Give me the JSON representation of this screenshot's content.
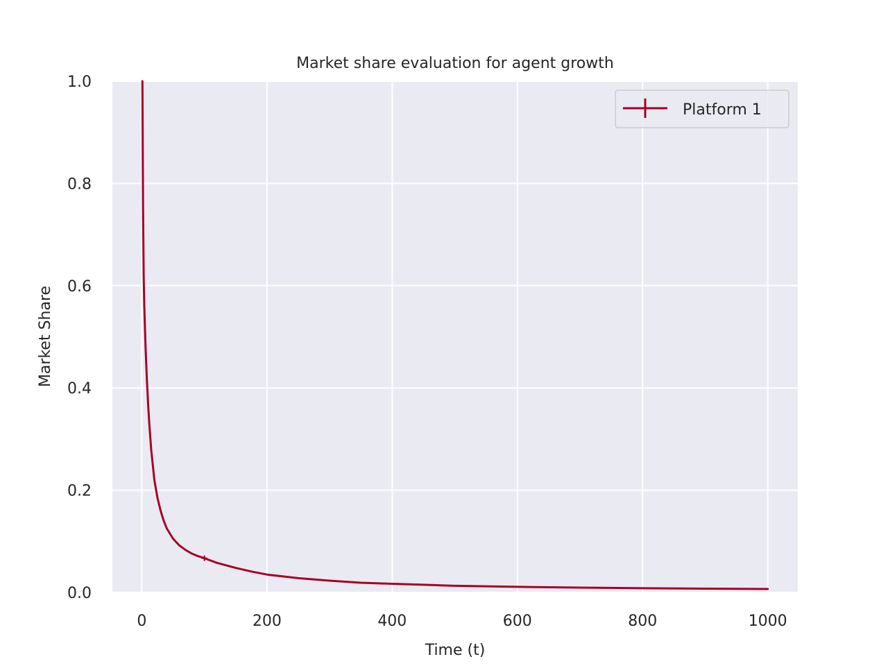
{
  "chart_data": {
    "type": "line",
    "title": "Market share evaluation for agent growth",
    "xlabel": "Time (t)",
    "ylabel": "Market Share",
    "xlim": [
      -47,
      1048
    ],
    "ylim": [
      0.0,
      1.0
    ],
    "xticks": [
      0,
      200,
      400,
      600,
      800,
      1000
    ],
    "yticks": [
      0.0,
      0.2,
      0.4,
      0.6,
      0.8,
      1.0
    ],
    "xtick_labels": [
      "0",
      "200",
      "400",
      "600",
      "800",
      "1000"
    ],
    "ytick_labels": [
      "0.0",
      "0.2",
      "0.4",
      "0.6",
      "0.8",
      "1.0"
    ],
    "grid": true,
    "legend_position": "top-right",
    "series": [
      {
        "name": "Platform 1",
        "color": "#a50026",
        "marker": "+",
        "marker_points": [
          [
            100,
            0.067
          ]
        ],
        "x": [
          1,
          2,
          3,
          4,
          5,
          6,
          8,
          10,
          12,
          15,
          20,
          25,
          30,
          35,
          40,
          50,
          60,
          70,
          80,
          90,
          100,
          120,
          150,
          175,
          200,
          250,
          300,
          350,
          400,
          450,
          500,
          600,
          700,
          800,
          900,
          1000
        ],
        "y": [
          1.0,
          0.75,
          0.62,
          0.56,
          0.52,
          0.48,
          0.42,
          0.37,
          0.33,
          0.28,
          0.22,
          0.185,
          0.16,
          0.14,
          0.125,
          0.105,
          0.092,
          0.083,
          0.076,
          0.071,
          0.067,
          0.058,
          0.048,
          0.041,
          0.035,
          0.028,
          0.023,
          0.019,
          0.017,
          0.015,
          0.013,
          0.011,
          0.0095,
          0.0083,
          0.0075,
          0.0068
        ]
      }
    ]
  }
}
